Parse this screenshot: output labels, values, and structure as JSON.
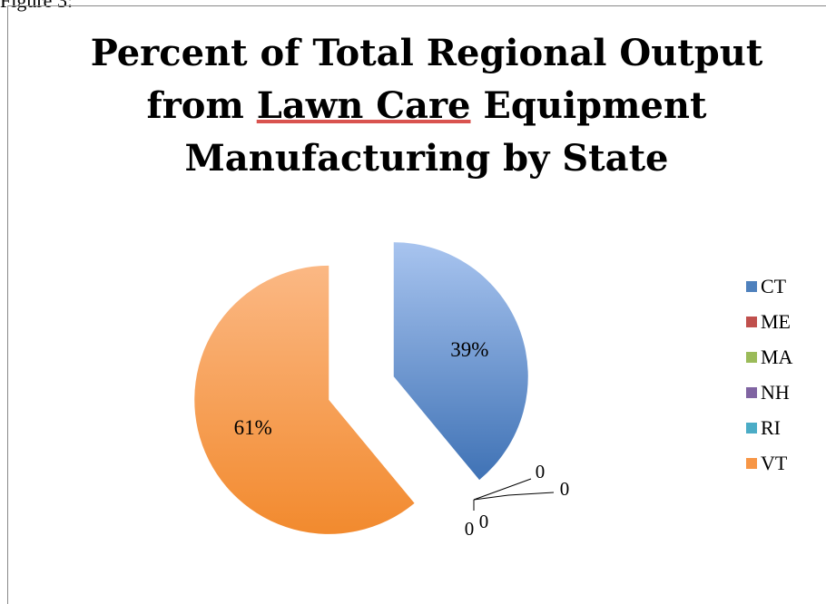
{
  "header_fragment": "Figure 3:",
  "chart_data": {
    "type": "pie",
    "title_lines": [
      "Percent of Total Regional Output",
      "from Lawn Care Equipment",
      "Manufacturing by State"
    ],
    "title_underlined_phrase": "Lawn Care",
    "categories": [
      "CT",
      "ME",
      "MA",
      "NH",
      "RI",
      "VT"
    ],
    "values": [
      39,
      0,
      0,
      0,
      0,
      61
    ],
    "data_labels": [
      "39%",
      "0",
      "0",
      "0",
      "0",
      "61%"
    ],
    "colors": [
      "#4f81bd",
      "#c0504d",
      "#9bbb59",
      "#8064a2",
      "#4bacc6",
      "#f79646"
    ],
    "exploded": true,
    "legend_position": "right"
  }
}
